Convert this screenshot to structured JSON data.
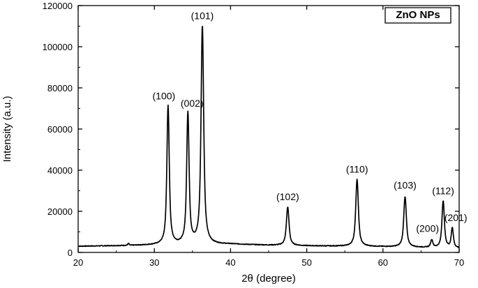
{
  "chart_data": {
    "type": "line",
    "title": "",
    "xlabel": "2θ (degree)",
    "ylabel": "Intensity (a.u.)",
    "xlim": [
      20,
      70
    ],
    "ylim": [
      0,
      120000
    ],
    "xticks": [
      20,
      30,
      40,
      50,
      60,
      70
    ],
    "yticks": [
      0,
      20000,
      40000,
      60000,
      80000,
      100000,
      120000
    ],
    "grid": false,
    "legend": {
      "position": "top-right",
      "entries": [
        "ZnO NPs"
      ]
    },
    "series": [
      {
        "name": "ZnO NPs",
        "color": "#000000",
        "baseline": [
          [
            20,
            3000
          ],
          [
            26,
            3300
          ],
          [
            30,
            3600
          ],
          [
            40,
            4000
          ],
          [
            45,
            3500
          ],
          [
            50,
            3200
          ],
          [
            55,
            3000
          ],
          [
            60,
            2800
          ],
          [
            65,
            2400
          ],
          [
            70,
            2000
          ]
        ],
        "peaks": [
          {
            "label": "(100)",
            "x": 31.8,
            "y": 71000,
            "w": 0.2
          },
          {
            "label": "(002)",
            "x": 34.4,
            "y": 67500,
            "w": 0.2
          },
          {
            "label": "(101)",
            "x": 36.3,
            "y": 110000,
            "w": 0.22
          },
          {
            "label": "(102)",
            "x": 47.5,
            "y": 22000,
            "w": 0.22
          },
          {
            "label": "(110)",
            "x": 56.6,
            "y": 35500,
            "w": 0.22
          },
          {
            "label": "(103)",
            "x": 62.9,
            "y": 27000,
            "w": 0.22
          },
          {
            "label": "(200)",
            "x": 66.4,
            "y": 6000,
            "w": 0.18
          },
          {
            "label": "(112)",
            "x": 67.9,
            "y": 25000,
            "w": 0.2
          },
          {
            "label": "(201)",
            "x": 69.1,
            "y": 11800,
            "w": 0.18
          }
        ],
        "extra_features": [
          {
            "x": 26.6,
            "y": 4300,
            "w": 0.1
          }
        ]
      }
    ]
  }
}
